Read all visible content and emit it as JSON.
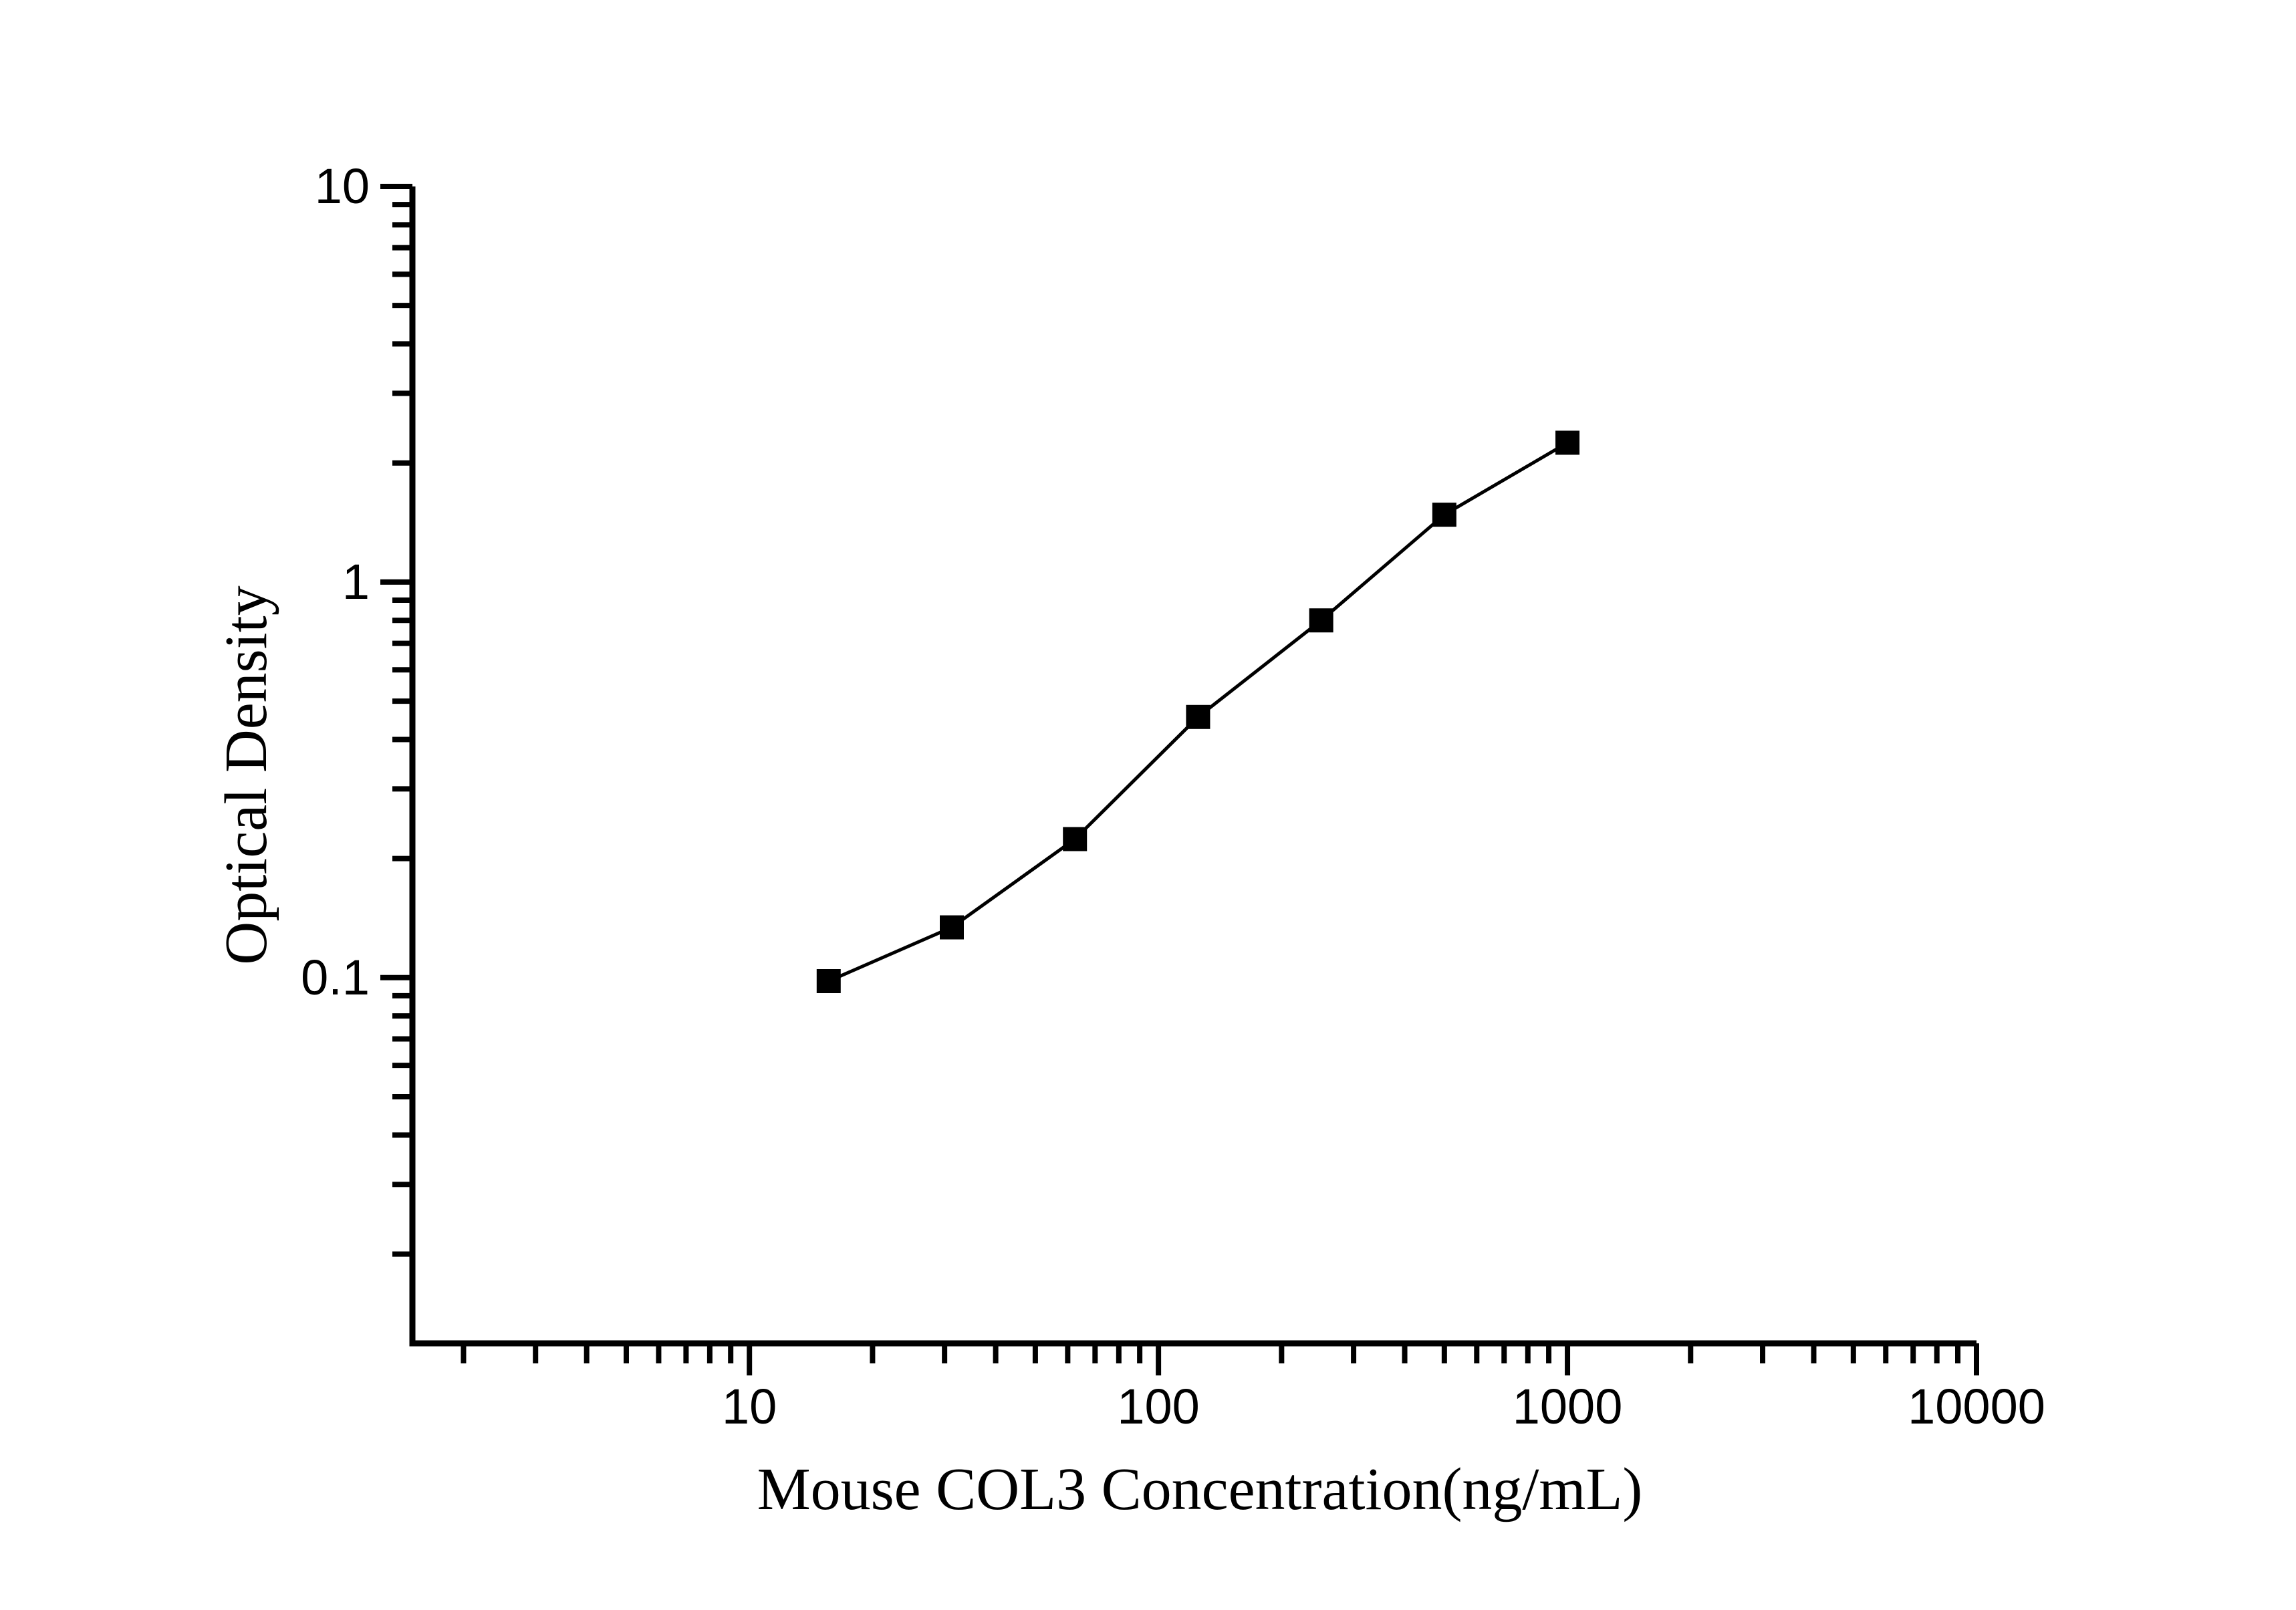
{
  "figure": {
    "background": "#ffffff"
  },
  "chart_data": {
    "type": "line",
    "title": "",
    "xlabel": "Mouse COL3 Concentration(ng/mL)",
    "ylabel": "Optical Density",
    "x_scale": "log",
    "y_scale": "log",
    "x": [
      15.625,
      31.25,
      62.5,
      125,
      250,
      500,
      1000
    ],
    "y": [
      0.098,
      0.134,
      0.224,
      0.456,
      0.8,
      1.48,
      2.25
    ],
    "x_major_ticks": [
      "10",
      "100",
      "1000",
      "10000"
    ],
    "y_major_ticks": [
      "0.1",
      "1",
      "10"
    ],
    "x_major_tick_values": [
      10,
      100,
      1000,
      10000
    ],
    "y_major_tick_values": [
      0.1,
      1,
      10
    ],
    "x_range": [
      1.5,
      10000
    ],
    "y_range": [
      0.0119,
      10
    ],
    "grid": false,
    "legend": "none",
    "marker": "filled-square",
    "colors": {
      "line": "#000000",
      "marker": "#000000",
      "axis": "#000000",
      "text": "#000000"
    }
  }
}
